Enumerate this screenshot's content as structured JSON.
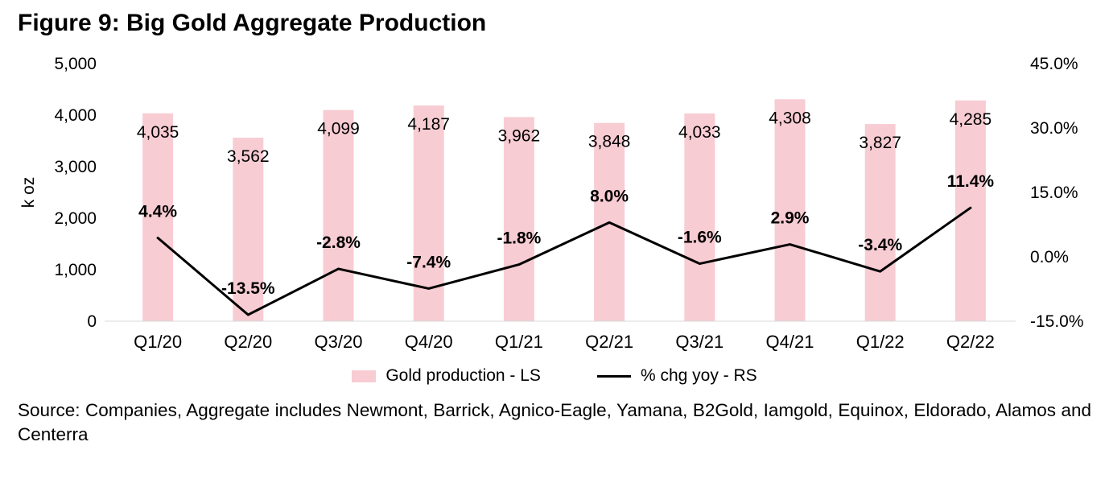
{
  "title": "Figure 9: Big Gold Aggregate Production",
  "source": "Source: Companies, Aggregate includes Newmont, Barrick, Agnico-Eagle, Yamana, B2Gold, Iamgold, Equinox, Eldorado, Alamos and Centerra",
  "chart_data": {
    "type": "bar+line combo",
    "title": "Figure 9: Big Gold Aggregate Production",
    "categories": [
      "Q1/20",
      "Q2/20",
      "Q3/20",
      "Q4/20",
      "Q1/21",
      "Q2/21",
      "Q3/21",
      "Q4/21",
      "Q1/22",
      "Q2/22"
    ],
    "series": [
      {
        "name": "Gold production - LS",
        "type": "bar",
        "axis": "left",
        "color": "#f8ccd3",
        "values": [
          4035,
          3562,
          4099,
          4187,
          3962,
          3848,
          4033,
          4308,
          3827,
          4285
        ],
        "labels": [
          "4,035",
          "3,562",
          "4,099",
          "4,187",
          "3,962",
          "3,848",
          "4,033",
          "4,308",
          "3,827",
          "4,285"
        ]
      },
      {
        "name": "% chg yoy - RS",
        "type": "line",
        "axis": "right",
        "color": "#000000",
        "values": [
          4.4,
          -13.5,
          -2.8,
          -7.4,
          -1.8,
          8.0,
          -1.6,
          2.9,
          -3.4,
          11.4
        ],
        "labels": [
          "4.4%",
          "-13.5%",
          "-2.8%",
          "-7.4%",
          "-1.8%",
          "8.0%",
          "-1.6%",
          "2.9%",
          "-3.4%",
          "11.4%"
        ]
      }
    ],
    "left_axis": {
      "title": "k oz",
      "min": 0,
      "max": 5000,
      "tick_values": [
        0,
        1000,
        2000,
        3000,
        4000,
        5000
      ],
      "tick_labels": [
        "0",
        "1,000",
        "2,000",
        "3,000",
        "4,000",
        "5,000"
      ]
    },
    "right_axis": {
      "min": -15,
      "max": 45,
      "tick_values": [
        -15,
        0,
        15,
        30,
        45
      ],
      "tick_labels": [
        "-15.0%",
        "0.0%",
        "15.0%",
        "30.0%",
        "45.0%"
      ]
    },
    "grid": false,
    "legend_position": "bottom",
    "axis_line_color": "#d9d9d9"
  }
}
